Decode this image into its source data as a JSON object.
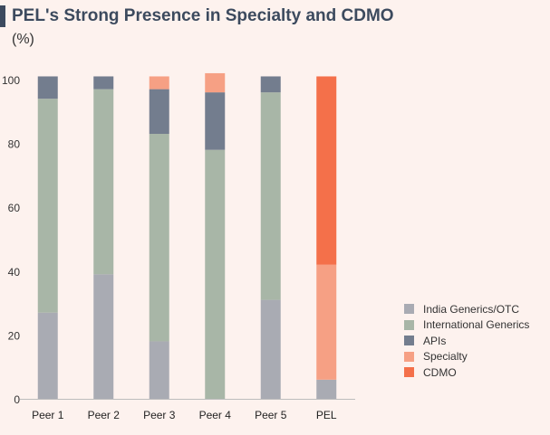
{
  "title": "PEL's Strong Presence in Specialty and CDMO",
  "ylabel": "(%)",
  "colors": {
    "title_accent": "#3c4a5e",
    "background": "#fdf2ee",
    "india_generics": "#a9abb3",
    "international_generics": "#a8b6a7",
    "apis": "#737d8e",
    "specialty": "#f6a084",
    "cdmo": "#f4704a"
  },
  "chart_data": {
    "type": "bar",
    "stacked": true,
    "categories": [
      "Peer 1",
      "Peer 2",
      "Peer 3",
      "Peer 4",
      "Peer 5",
      "PEL"
    ],
    "ylim": [
      0,
      100
    ],
    "yticks": [
      0,
      20,
      40,
      60,
      80,
      100
    ],
    "series": [
      {
        "name": "India Generics/OTC",
        "color": "#a9abb3",
        "values": [
          27,
          39,
          18,
          0,
          31,
          6
        ]
      },
      {
        "name": "International Generics",
        "color": "#a8b6a7",
        "values": [
          67,
          58,
          65,
          78,
          65,
          0
        ]
      },
      {
        "name": "APIs",
        "color": "#737d8e",
        "values": [
          7,
          4,
          14,
          18,
          5,
          0
        ]
      },
      {
        "name": "Specialty",
        "color": "#f6a084",
        "values": [
          0,
          0,
          4,
          6,
          0,
          36
        ]
      },
      {
        "name": "CDMO",
        "color": "#f4704a",
        "values": [
          0,
          0,
          0,
          0,
          0,
          59
        ]
      }
    ],
    "legend_position": "right"
  }
}
